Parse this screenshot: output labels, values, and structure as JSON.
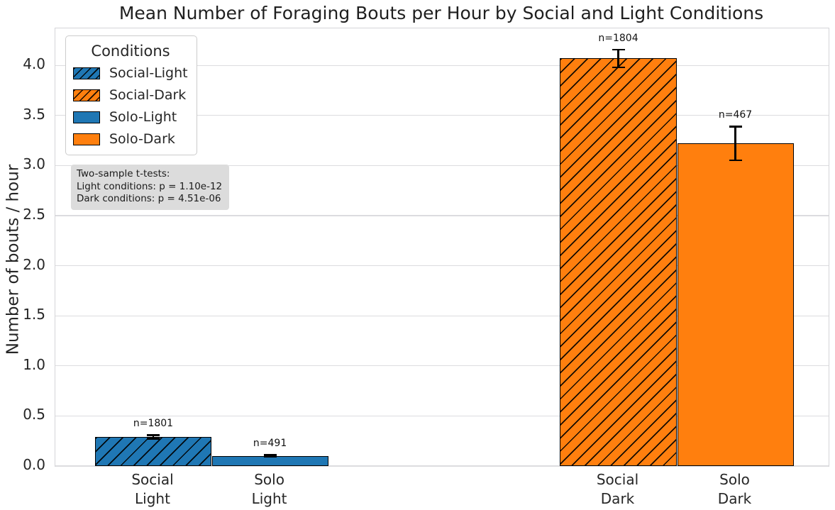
{
  "chart_data": {
    "type": "bar",
    "title": "Mean Number of Foraging Bouts per Hour by Social and Light Conditions",
    "xlabel": "",
    "ylabel": "Number of bouts / hour",
    "ylim": [
      0,
      4.37
    ],
    "yticks": [
      "0.0",
      "0.5",
      "1.0",
      "1.5",
      "2.0",
      "2.5",
      "3.0",
      "3.5",
      "4.0"
    ],
    "grid": "horizontal",
    "background": "#ffffff",
    "colors": {
      "social_light": "#1f77b4",
      "social_dark": "#ff7f0e",
      "solo_light": "#1f77b4",
      "solo_dark": "#ff7f0e",
      "errorbar": "#000000",
      "gridline": "#dcdcdf",
      "annotation_box": "#dcdcdc"
    },
    "legend": {
      "title": "Conditions",
      "position": "upper-left",
      "entries": [
        {
          "label": "Social-Light",
          "color": "#1f77b4",
          "hatched": true
        },
        {
          "label": "Social-Dark",
          "color": "#ff7f0e",
          "hatched": true
        },
        {
          "label": "Solo-Light",
          "color": "#1f77b4",
          "hatched": false
        },
        {
          "label": "Solo-Dark",
          "color": "#ff7f0e",
          "hatched": false
        }
      ]
    },
    "bars": [
      {
        "category": [
          "Social",
          "Light"
        ],
        "value": 0.29,
        "error": 0.02,
        "n_label": "n=1801",
        "color": "#1f77b4",
        "hatched": true
      },
      {
        "category": [
          "Solo",
          "Light"
        ],
        "value": 0.1,
        "error": 0.01,
        "n_label": "n=491",
        "color": "#1f77b4",
        "hatched": false
      },
      {
        "category": [
          "Social",
          "Dark"
        ],
        "value": 4.07,
        "error": 0.09,
        "n_label": "n=1804",
        "color": "#ff7f0e",
        "hatched": true
      },
      {
        "category": [
          "Solo",
          "Dark"
        ],
        "value": 3.22,
        "error": 0.17,
        "n_label": "n=467",
        "color": "#ff7f0e",
        "hatched": false
      }
    ],
    "annotation": {
      "lines": [
        "Two-sample t-tests:",
        "Light conditions: p = 1.10e-12",
        "Dark conditions: p = 4.51e-06"
      ]
    }
  }
}
